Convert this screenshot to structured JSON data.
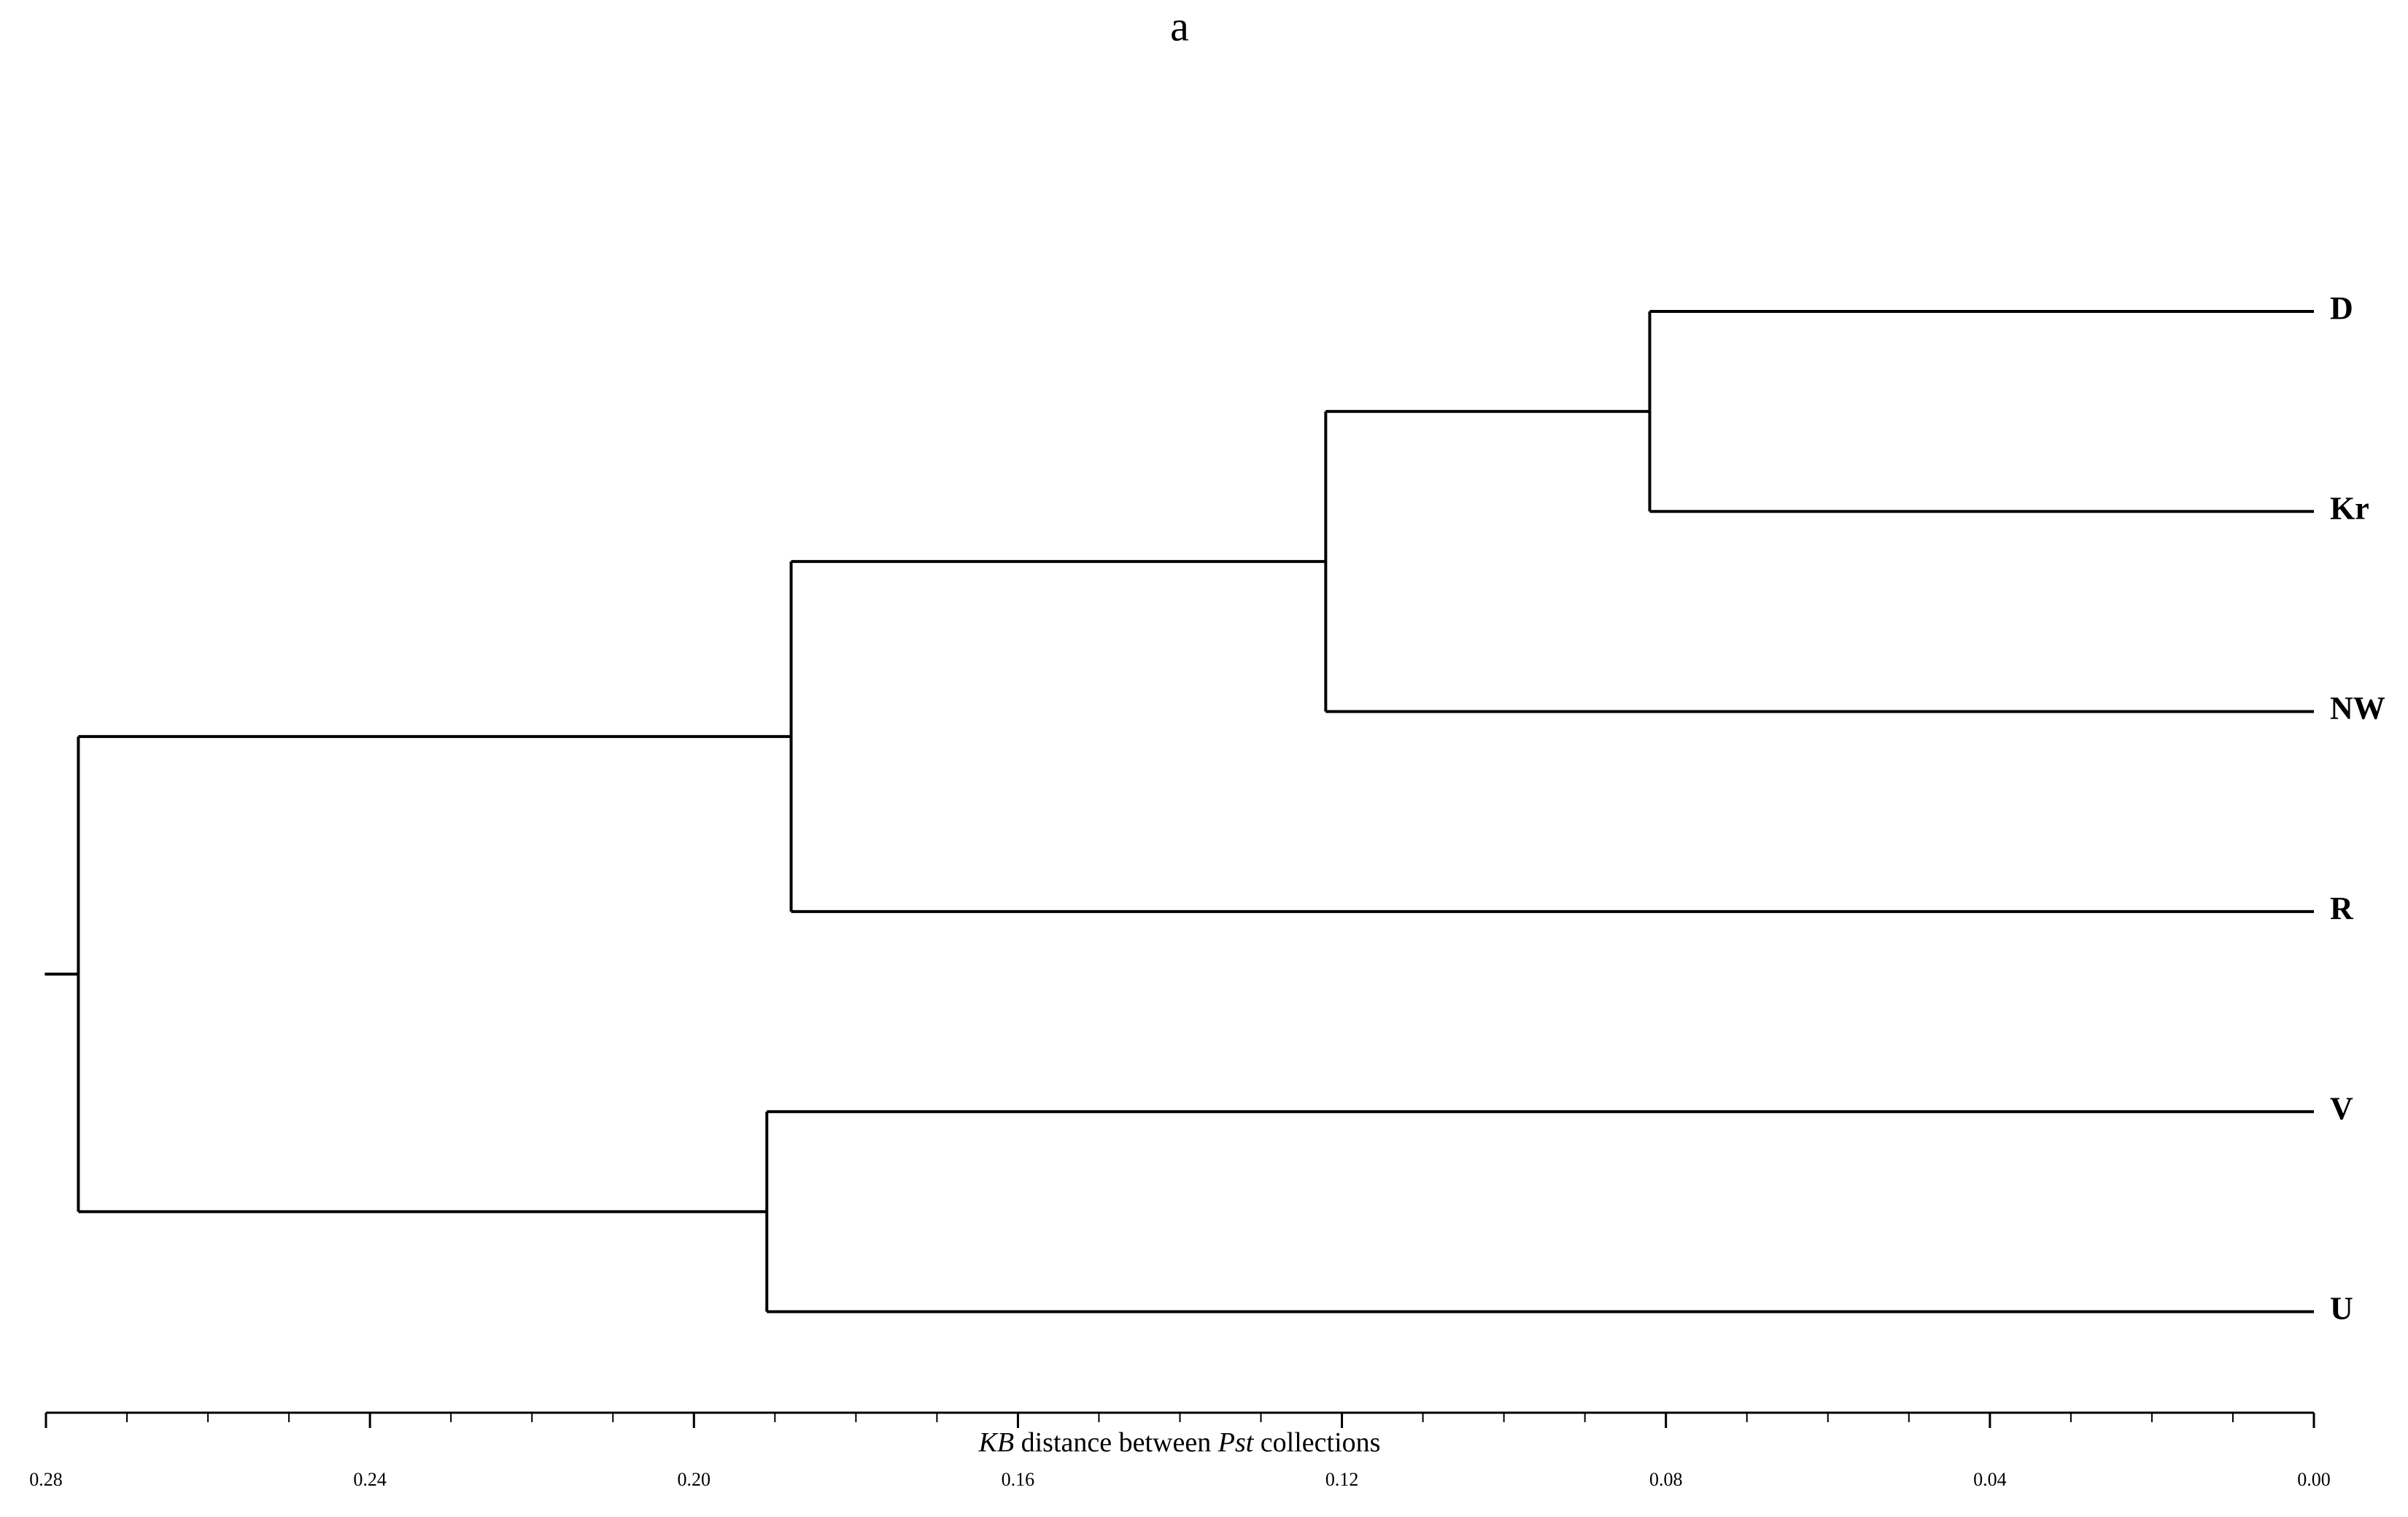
{
  "chart_data": {
    "type": "dendrogram",
    "title": "a",
    "x_label": [
      {
        "text": "KB",
        "italic": true
      },
      {
        "text": " distance between ",
        "italic": false
      },
      {
        "text": "Pst",
        "italic": true
      },
      {
        "text": " collections",
        "italic": false
      }
    ],
    "leaves": [
      "D",
      "Kr",
      "NW",
      "R",
      "V",
      "U"
    ],
    "merges": [
      {
        "children": [
          0,
          1
        ],
        "height": 0.082
      },
      {
        "children": [
          6,
          2
        ],
        "height": 0.122
      },
      {
        "children": [
          7,
          3
        ],
        "height": 0.188
      },
      {
        "children": [
          4,
          5
        ],
        "height": 0.191
      },
      {
        "children": [
          8,
          9
        ],
        "height": 0.276
      }
    ],
    "xlim": [
      0.28,
      0
    ],
    "xticks": [
      0.28,
      0.24,
      {
        "value": 0.2,
        "label": "0.20"
      },
      0.16,
      0.12,
      0.08,
      0.04,
      {
        "value": 0,
        "label": "0.00"
      }
    ],
    "xticks_minor": [
      0.27,
      0.26,
      0.25,
      0.23,
      0.22,
      0.21,
      0.19,
      0.18,
      0.17,
      0.15,
      0.14,
      0.13,
      0.11,
      0.1,
      0.09,
      0.07,
      0.06,
      0.05,
      0.03,
      0.02,
      0.01
    ],
    "color": "#000000"
  }
}
